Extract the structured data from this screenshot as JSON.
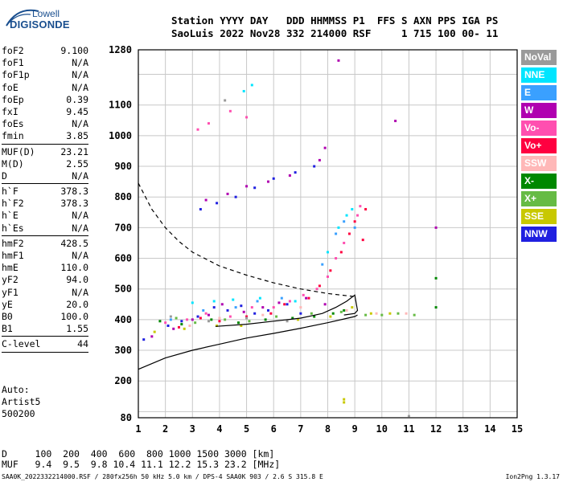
{
  "logo": {
    "line1": "Lowell",
    "line2": "DIGISONDE"
  },
  "header": {
    "line1": "Station YYYY DAY   DDD HHMMSS P1  FFS S AXN PPS IGA PS",
    "line2": "SaoLuis 2022 Nov28 332 214000 RSF     1 715 100 00- 11"
  },
  "params": [
    {
      "k": "foF2",
      "v": "9.100"
    },
    {
      "k": "foF1",
      "v": "N/A"
    },
    {
      "k": "foF1p",
      "v": "N/A"
    },
    {
      "k": "foE",
      "v": "N/A"
    },
    {
      "k": "foEp",
      "v": "0.39"
    },
    {
      "k": "fxI",
      "v": "9.45"
    },
    {
      "k": "foEs",
      "v": "N/A"
    },
    {
      "k": "fmin",
      "v": "3.85"
    },
    {
      "sep": true
    },
    {
      "k": "MUF(D)",
      "v": "23.21"
    },
    {
      "k": "M(D)",
      "v": "2.55"
    },
    {
      "k": "D",
      "v": "N/A"
    },
    {
      "sep": true
    },
    {
      "k": "h`F",
      "v": "378.3"
    },
    {
      "k": "h`F2",
      "v": "378.3"
    },
    {
      "k": "h`E",
      "v": "N/A"
    },
    {
      "k": "h`Es",
      "v": "N/A"
    },
    {
      "sep": true
    },
    {
      "k": "hmF2",
      "v": "428.5"
    },
    {
      "k": "hmF1",
      "v": "N/A"
    },
    {
      "k": "hmE",
      "v": "110.0"
    },
    {
      "k": "yF2",
      "v": "94.0"
    },
    {
      "k": "yF1",
      "v": "N/A"
    },
    {
      "k": "yE",
      "v": "20.0"
    },
    {
      "k": "B0",
      "v": "100.0"
    },
    {
      "k": "B1",
      "v": "1.55"
    },
    {
      "sep": true
    },
    {
      "k": "C-level",
      "v": "44"
    },
    {
      "sep": true
    }
  ],
  "auto": {
    "l1": "Auto:",
    "l2": "Artist5",
    "l3": "500200"
  },
  "legend": [
    {
      "label": "NoVal",
      "color": "#9a9a9a"
    },
    {
      "label": "NNE",
      "color": "#00e5ff"
    },
    {
      "label": "E",
      "color": "#3aa0ff"
    },
    {
      "label": "W",
      "color": "#b000b0"
    },
    {
      "label": "Vo-",
      "color": "#ff4fb0"
    },
    {
      "label": "Vo+",
      "color": "#ff0040"
    },
    {
      "label": "SSW",
      "color": "#ffb8b8"
    },
    {
      "label": "X-",
      "color": "#008800"
    },
    {
      "label": "X+",
      "color": "#66bb44"
    },
    {
      "label": "SSE",
      "color": "#c8c800"
    },
    {
      "label": "NNW",
      "color": "#2020e0"
    }
  ],
  "bottom": {
    "d_line": "D     100  200  400  600  800 1000 1500 3000 [km]",
    "muf_line": "MUF   9.4  9.5  9.8 10.4 11.1 12.2 15.3 23.2 [MHz]",
    "footer_left": "SAA0K_2022332214000.RSF / 280fx256h 50 kHz 5.0 km / DPS-4 SAA0K 903 / 2.6 S 315.8 E",
    "footer_right": "Ion2Png 1.3.17"
  },
  "chart_data": {
    "type": "scatter",
    "xlim": [
      1,
      15
    ],
    "ylim": [
      80,
      1280
    ],
    "x_ticks": [
      1,
      2,
      3,
      4,
      5,
      6,
      7,
      8,
      9,
      10,
      11,
      12,
      13,
      14,
      15
    ],
    "y_ticks": [
      80,
      200,
      300,
      400,
      500,
      600,
      700,
      800,
      900,
      1000,
      1100,
      1280
    ],
    "grid": true,
    "series": [
      {
        "name": "NNW",
        "color": "#2020e0",
        "points": [
          [
            1.2,
            335
          ],
          [
            2.1,
            380
          ],
          [
            2.6,
            395
          ],
          [
            3.2,
            410
          ],
          [
            3.8,
            440
          ],
          [
            4.3,
            430
          ],
          [
            4.8,
            445
          ],
          [
            5.3,
            420
          ],
          [
            5.8,
            430
          ],
          [
            6.5,
            450
          ],
          [
            7.0,
            420
          ],
          [
            3.3,
            760
          ],
          [
            3.9,
            780
          ],
          [
            4.6,
            800
          ],
          [
            5.3,
            830
          ],
          [
            6.0,
            860
          ],
          [
            6.8,
            880
          ],
          [
            7.5,
            900
          ]
        ]
      },
      {
        "name": "W",
        "color": "#b000b0",
        "points": [
          [
            1.5,
            345
          ],
          [
            2.3,
            370
          ],
          [
            3.0,
            400
          ],
          [
            3.6,
            415
          ],
          [
            4.1,
            450
          ],
          [
            4.9,
            425
          ],
          [
            5.6,
            440
          ],
          [
            6.2,
            455
          ],
          [
            7.2,
            470
          ],
          [
            7.9,
            450
          ],
          [
            8.4,
            1245
          ],
          [
            10.5,
            1048
          ],
          [
            12.0,
            700
          ],
          [
            3.5,
            790
          ],
          [
            4.3,
            810
          ],
          [
            5.0,
            835
          ],
          [
            5.8,
            850
          ],
          [
            6.6,
            870
          ],
          [
            7.7,
            920
          ],
          [
            7.9,
            960
          ]
        ]
      },
      {
        "name": "Vo-",
        "color": "#ff4fb0",
        "points": [
          [
            2.0,
            390
          ],
          [
            2.8,
            400
          ],
          [
            3.5,
            420
          ],
          [
            4.4,
            410
          ],
          [
            5.2,
            440
          ],
          [
            6.0,
            440
          ],
          [
            6.6,
            460
          ],
          [
            7.1,
            480
          ],
          [
            7.6,
            500
          ],
          [
            8.0,
            540
          ],
          [
            8.3,
            600
          ],
          [
            8.6,
            650
          ],
          [
            9.1,
            740
          ],
          [
            9.2,
            770
          ],
          [
            3.6,
            1040
          ],
          [
            4.4,
            1080
          ],
          [
            5.0,
            1060
          ],
          [
            3.2,
            1020
          ]
        ]
      },
      {
        "name": "Vo+",
        "color": "#ff0040",
        "points": [
          [
            2.5,
            375
          ],
          [
            3.3,
            405
          ],
          [
            4.0,
            395
          ],
          [
            5.0,
            410
          ],
          [
            5.9,
            420
          ],
          [
            6.4,
            450
          ],
          [
            7.3,
            470
          ],
          [
            7.7,
            510
          ],
          [
            8.1,
            560
          ],
          [
            8.5,
            620
          ],
          [
            8.8,
            680
          ],
          [
            9.0,
            720
          ],
          [
            9.3,
            660
          ],
          [
            9.4,
            760
          ]
        ]
      },
      {
        "name": "NNE",
        "color": "#00e5ff",
        "points": [
          [
            3.0,
            455
          ],
          [
            3.8,
            460
          ],
          [
            4.5,
            465
          ],
          [
            5.5,
            470
          ],
          [
            6.8,
            460
          ],
          [
            8.0,
            620
          ],
          [
            8.4,
            700
          ],
          [
            8.7,
            740
          ],
          [
            8.9,
            760
          ],
          [
            4.9,
            1145
          ],
          [
            5.2,
            1165
          ]
        ]
      },
      {
        "name": "E",
        "color": "#3aa0ff",
        "points": [
          [
            2.2,
            400
          ],
          [
            3.4,
            430
          ],
          [
            4.6,
            440
          ],
          [
            5.4,
            460
          ],
          [
            6.3,
            470
          ],
          [
            7.8,
            580
          ],
          [
            8.3,
            680
          ],
          [
            8.6,
            720
          ],
          [
            9.0,
            700
          ]
        ]
      },
      {
        "name": "X-",
        "color": "#008800",
        "points": [
          [
            1.8,
            395
          ],
          [
            2.6,
            385
          ],
          [
            3.7,
            400
          ],
          [
            4.7,
            390
          ],
          [
            5.7,
            400
          ],
          [
            6.7,
            405
          ],
          [
            7.5,
            410
          ],
          [
            8.2,
            420
          ],
          [
            8.6,
            430
          ],
          [
            12.0,
            535
          ],
          [
            12.0,
            440
          ]
        ]
      },
      {
        "name": "X+",
        "color": "#66bb44",
        "points": [
          [
            2.4,
            405
          ],
          [
            3.1,
            390
          ],
          [
            4.2,
            400
          ],
          [
            5.1,
            395
          ],
          [
            6.1,
            410
          ],
          [
            7.4,
            420
          ],
          [
            8.5,
            425
          ],
          [
            9.4,
            415
          ],
          [
            10.0,
            415
          ],
          [
            10.6,
            420
          ],
          [
            11.2,
            415
          ]
        ]
      },
      {
        "name": "SSE",
        "color": "#c8c800",
        "points": [
          [
            1.6,
            360
          ],
          [
            2.7,
            370
          ],
          [
            3.9,
            380
          ],
          [
            4.8,
            380
          ],
          [
            6.9,
            400
          ],
          [
            8.1,
            410
          ],
          [
            8.9,
            440
          ],
          [
            9.6,
            420
          ],
          [
            10.3,
            420
          ],
          [
            8.6,
            130
          ],
          [
            8.6,
            140
          ]
        ]
      },
      {
        "name": "SSW",
        "color": "#ffb8b8",
        "points": [
          [
            2.9,
            380
          ],
          [
            4.0,
            405
          ],
          [
            5.6,
            415
          ],
          [
            7.0,
            440
          ],
          [
            8.7,
            430
          ],
          [
            9.8,
            420
          ],
          [
            10.9,
            420
          ]
        ]
      },
      {
        "name": "NoVal",
        "color": "#9a9a9a",
        "points": [
          [
            2.2,
            410
          ],
          [
            3.6,
            395
          ],
          [
            5.0,
            405
          ],
          [
            6.5,
            395
          ],
          [
            4.2,
            1115
          ],
          [
            11.0,
            85
          ]
        ]
      }
    ],
    "traces": [
      {
        "name": "profile",
        "style": "solid",
        "points": [
          [
            1,
            238
          ],
          [
            2,
            275
          ],
          [
            3,
            300
          ],
          [
            4,
            320
          ],
          [
            5,
            340
          ],
          [
            6,
            355
          ],
          [
            7,
            372
          ],
          [
            8,
            390
          ],
          [
            9,
            410
          ],
          [
            9.1,
            415
          ]
        ]
      },
      {
        "name": "dashed",
        "style": "dashed",
        "points": [
          [
            1,
            845
          ],
          [
            1.5,
            760
          ],
          [
            2,
            700
          ],
          [
            2.5,
            655
          ],
          [
            3,
            620
          ],
          [
            4,
            575
          ],
          [
            5,
            545
          ],
          [
            6,
            520
          ],
          [
            7,
            500
          ],
          [
            8,
            485
          ],
          [
            9,
            475
          ]
        ]
      },
      {
        "name": "o-trace",
        "style": "solid",
        "points": [
          [
            3.85,
            378
          ],
          [
            5,
            385
          ],
          [
            6,
            395
          ],
          [
            7,
            405
          ],
          [
            7.8,
            420
          ],
          [
            8.3,
            440
          ],
          [
            8.7,
            460
          ],
          [
            9.0,
            480
          ],
          [
            9.1,
            430
          ],
          [
            9.0,
            420
          ],
          [
            8.6,
            415
          ]
        ]
      }
    ]
  }
}
